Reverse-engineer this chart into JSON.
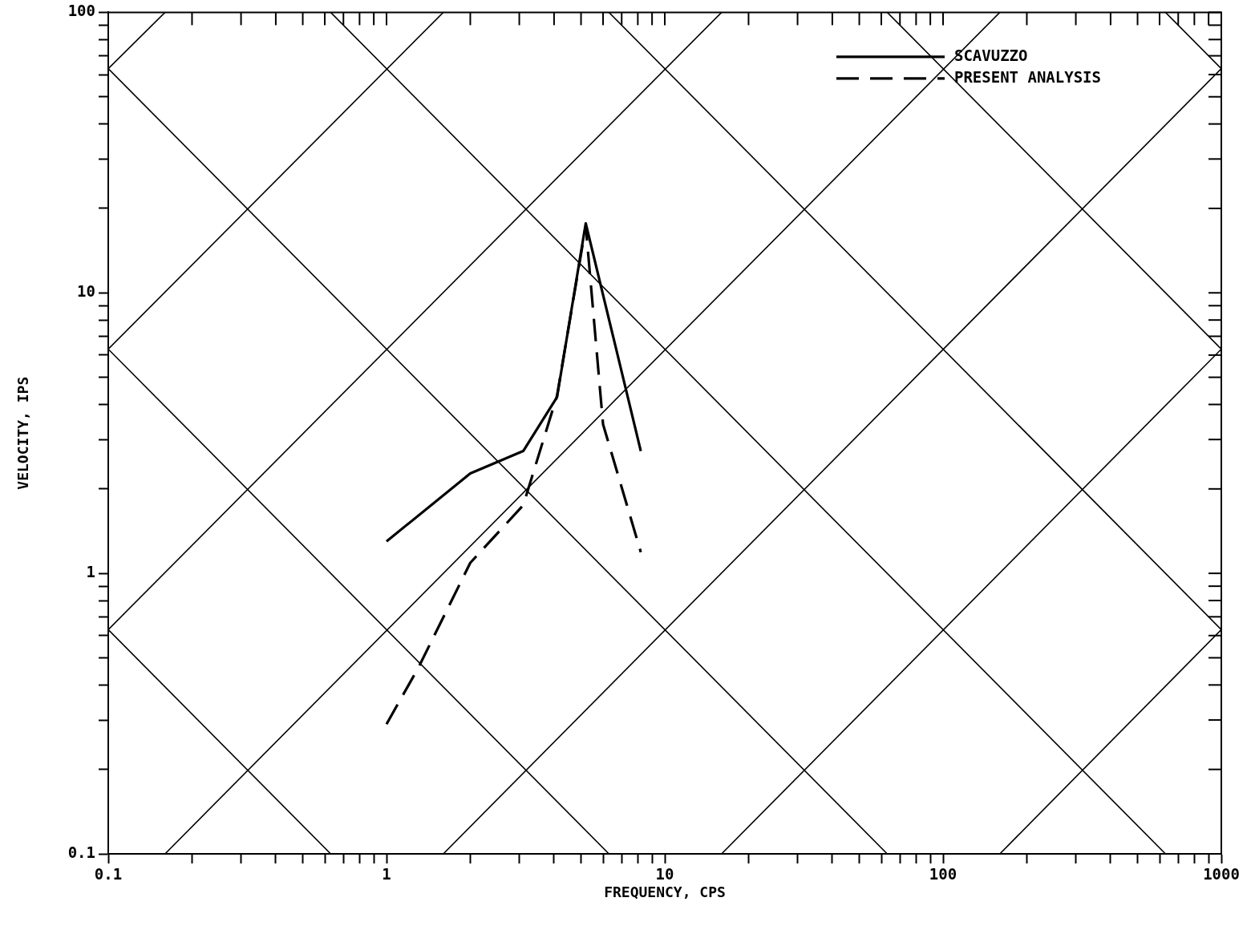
{
  "chart_data": {
    "type": "line",
    "xlabel": "FREQUENCY, CPS",
    "ylabel": "VELOCITY, IPS",
    "log": "xy",
    "xlim": [
      0.1,
      1000
    ],
    "ylim": [
      0.1,
      100
    ],
    "xticks": [
      0.1,
      {
        "value": 0.2,
        "label": null
      },
      {
        "value": 0.3,
        "label": null
      },
      {
        "value": 0.4,
        "label": null
      },
      {
        "value": 0.5,
        "label": null
      },
      {
        "value": 0.6,
        "label": null
      },
      {
        "value": 0.7,
        "label": null
      },
      {
        "value": 0.8,
        "label": null
      },
      {
        "value": 0.9,
        "label": null
      },
      1,
      {
        "value": 2,
        "label": null
      },
      {
        "value": 3,
        "label": null
      },
      {
        "value": 4,
        "label": null
      },
      {
        "value": 5,
        "label": null
      },
      {
        "value": 6,
        "label": null
      },
      {
        "value": 7,
        "label": null
      },
      {
        "value": 8,
        "label": null
      },
      {
        "value": 9,
        "label": null
      },
      10,
      {
        "value": 20,
        "label": null
      },
      {
        "value": 30,
        "label": null
      },
      {
        "value": 40,
        "label": null
      },
      {
        "value": 50,
        "label": null
      },
      {
        "value": 60,
        "label": null
      },
      {
        "value": 70,
        "label": null
      },
      {
        "value": 80,
        "label": null
      },
      {
        "value": 90,
        "label": null
      },
      100,
      {
        "value": 200,
        "label": null
      },
      {
        "value": 300,
        "label": null
      },
      {
        "value": 400,
        "label": null
      },
      {
        "value": 500,
        "label": null
      },
      {
        "value": 600,
        "label": null
      },
      {
        "value": 700,
        "label": null
      },
      {
        "value": 800,
        "label": null
      },
      {
        "value": 900,
        "label": null
      },
      1000
    ],
    "yticks": [
      0.1,
      {
        "value": 0.2,
        "label": null
      },
      {
        "value": 0.3,
        "label": null
      },
      {
        "value": 0.4,
        "label": null
      },
      {
        "value": 0.5,
        "label": null
      },
      {
        "value": 0.6,
        "label": null
      },
      {
        "value": 0.7,
        "label": null
      },
      {
        "value": 0.8,
        "label": null
      },
      {
        "value": 0.9,
        "label": null
      },
      1,
      {
        "value": 2,
        "label": null
      },
      {
        "value": 3,
        "label": null
      },
      {
        "value": 4,
        "label": null
      },
      {
        "value": 5,
        "label": null
      },
      {
        "value": 6,
        "label": null
      },
      {
        "value": 7,
        "label": null
      },
      {
        "value": 8,
        "label": null
      },
      {
        "value": 9,
        "label": null
      },
      10,
      {
        "value": 20,
        "label": null
      },
      {
        "value": 30,
        "label": null
      },
      {
        "value": 40,
        "label": null
      },
      {
        "value": 50,
        "label": null
      },
      {
        "value": 60,
        "label": null
      },
      {
        "value": 70,
        "label": null
      },
      {
        "value": 80,
        "label": null
      },
      {
        "value": 90,
        "label": null
      },
      100
    ],
    "legend": "top right",
    "marker": "none",
    "series": [
      {
        "name": "SCAVUZZO",
        "color": "#000000",
        "line_style": "solid",
        "x": [
          1,
          2,
          3.1,
          4.1,
          5.2,
          8.2
        ],
        "values": [
          1.3,
          2.27,
          2.73,
          4.25,
          17.7,
          2.73
        ]
      },
      {
        "name": "PRESENT ANALYSIS",
        "color": "#000000",
        "line_style": "dashed",
        "x": [
          1,
          1.3,
          2,
          3.1,
          4.1,
          5.2,
          6,
          8.2
        ],
        "values": [
          0.29,
          0.46,
          1.09,
          1.75,
          4.3,
          17.3,
          3.4,
          1.19
        ]
      },
      {
        "color": "#000000",
        "line_style": "solid",
        "x": [
          0.1,
          0.16
        ],
        "values": [
          63,
          100
        ]
      },
      {
        "color": "#000000",
        "line_style": "solid",
        "x": [
          0.1,
          1.6
        ],
        "values": [
          6.3,
          100
        ]
      },
      {
        "color": "#000000",
        "line_style": "solid",
        "x": [
          0.1,
          16
        ],
        "values": [
          0.63,
          100
        ]
      },
      {
        "color": "#000000",
        "line_style": "solid",
        "x": [
          0.16,
          160
        ],
        "values": [
          0.1,
          100
        ]
      },
      {
        "color": "#000000",
        "line_style": "solid",
        "x": [
          1.6,
          1000
        ],
        "values": [
          0.1,
          63
        ]
      },
      {
        "color": "#000000",
        "line_style": "solid",
        "x": [
          16,
          1000
        ],
        "values": [
          0.1,
          6.3
        ]
      },
      {
        "color": "#000000",
        "line_style": "solid",
        "x": [
          160,
          1000
        ],
        "values": [
          0.1,
          0.63
        ]
      },
      {
        "color": "#000000",
        "line_style": "solid",
        "x": [
          0.1,
          0.63
        ],
        "values": [
          0.63,
          0.1
        ]
      },
      {
        "color": "#000000",
        "line_style": "solid",
        "x": [
          0.1,
          6.3
        ],
        "values": [
          6.3,
          0.1
        ]
      },
      {
        "color": "#000000",
        "line_style": "solid",
        "x": [
          0.1,
          63
        ],
        "values": [
          63,
          0.1
        ]
      },
      {
        "color": "#000000",
        "line_style": "solid",
        "x": [
          0.63,
          630
        ],
        "values": [
          100,
          0.1
        ]
      },
      {
        "color": "#000000",
        "line_style": "solid",
        "x": [
          6.3,
          1000
        ],
        "values": [
          100,
          0.63
        ]
      },
      {
        "color": "#000000",
        "line_style": "solid",
        "x": [
          63,
          1000
        ],
        "values": [
          100,
          6.3
        ]
      },
      {
        "color": "#000000",
        "line_style": "solid",
        "x": [
          630,
          1000
        ],
        "values": [
          100,
          63
        ]
      }
    ]
  }
}
